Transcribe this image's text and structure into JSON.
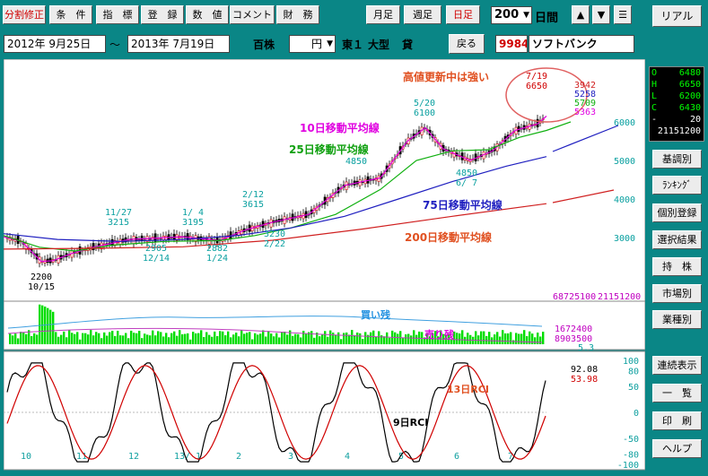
{
  "toolbar": {
    "buttons": [
      "分割修正",
      "条　件",
      "指　標",
      "登　録",
      "数　値",
      "コメント",
      "財　務"
    ],
    "period_buttons": [
      "月足",
      "週足",
      "日足"
    ],
    "count_value": "200",
    "count_unit": "日間",
    "up": "▲",
    "down": "▼",
    "menu": "☰",
    "realtime": "リアル"
  },
  "infobar": {
    "date_from": "2012年 9月25日",
    "tilde": "～",
    "date_to": "2013年 7月19日",
    "unit": "百株",
    "currency": "円",
    "market": "東１",
    "size": "大型",
    "lending": "貸",
    "back": "戻る",
    "code": "9984",
    "name": "ソフトバンク"
  },
  "ohlc": {
    "rows": [
      {
        "k": "O",
        "v": "6480",
        "color": "#00ff00"
      },
      {
        "k": "H",
        "v": "6650",
        "color": "#00ff00"
      },
      {
        "k": "L",
        "v": "6200",
        "color": "#00ff00"
      },
      {
        "k": "C",
        "v": "6430",
        "color": "#00ff00"
      },
      {
        "k": "-",
        "v": "20",
        "color": "#ffffff"
      },
      {
        "k": "",
        "v": "21151200",
        "color": "#ffffff"
      }
    ]
  },
  "sidebar": [
    "基調別",
    "ﾗﾝｷﾝｸﾞ",
    "個別登録",
    "選択結果",
    "持　株",
    "市場別",
    "業種別",
    "連続表示",
    "一　覧",
    "印　刷",
    "ヘルプ"
  ],
  "chart_data": {
    "type": "line",
    "price_axis": {
      "ticks": [
        6000,
        5000,
        4000,
        3000
      ],
      "ylim": [
        1800,
        7000
      ]
    },
    "x_ticks": [
      "10",
      "11",
      "12",
      "13/ 1",
      "2",
      "3",
      "4",
      "5",
      "6",
      "7"
    ],
    "series": [
      {
        "name": "10日移動平均線",
        "color": "#e000e0",
        "points": [
          [
            0,
            3020
          ],
          [
            20,
            2900
          ],
          [
            42,
            2380
          ],
          [
            55,
            2400
          ],
          [
            75,
            2580
          ],
          [
            100,
            2750
          ],
          [
            140,
            2950
          ],
          [
            200,
            3020
          ],
          [
            240,
            2920
          ],
          [
            270,
            3200
          ],
          [
            300,
            3400
          ],
          [
            340,
            3600
          ],
          [
            380,
            4350
          ],
          [
            420,
            4550
          ],
          [
            450,
            5500
          ],
          [
            470,
            5850
          ],
          [
            490,
            5300
          ],
          [
            520,
            5000
          ],
          [
            545,
            5250
          ],
          [
            570,
            5780
          ],
          [
            595,
            5950
          ],
          [
            605,
            6150
          ]
        ]
      },
      {
        "name": "25日移動平均線",
        "color": "#10b010",
        "points": [
          [
            0,
            3050
          ],
          [
            40,
            2750
          ],
          [
            80,
            2650
          ],
          [
            120,
            2800
          ],
          [
            180,
            2900
          ],
          [
            240,
            2920
          ],
          [
            280,
            3050
          ],
          [
            320,
            3250
          ],
          [
            370,
            3600
          ],
          [
            420,
            4250
          ],
          [
            460,
            5000
          ],
          [
            500,
            5250
          ],
          [
            540,
            5280
          ],
          [
            575,
            5600
          ],
          [
            605,
            5780
          ],
          [
            632,
            6000
          ]
        ]
      },
      {
        "name": "75日移動平均線",
        "color": "#2020c0",
        "points": [
          [
            0,
            3100
          ],
          [
            60,
            2950
          ],
          [
            130,
            2900
          ],
          [
            200,
            2950
          ],
          [
            260,
            3050
          ],
          [
            320,
            3250
          ],
          [
            380,
            3550
          ],
          [
            440,
            4000
          ],
          [
            500,
            4450
          ],
          [
            560,
            4850
          ],
          [
            605,
            5100
          ]
        ]
      },
      {
        "name": "200日移動平均線",
        "color": "#d02020",
        "points": [
          [
            0,
            2700
          ],
          [
            100,
            2720
          ],
          [
            200,
            2760
          ],
          [
            300,
            2930
          ],
          [
            400,
            3220
          ],
          [
            500,
            3550
          ],
          [
            605,
            3880
          ]
        ]
      }
    ],
    "annotations": [
      {
        "text": "2200",
        "sub": "10/15"
      },
      {
        "text": "11/27",
        "sub": "3215"
      },
      {
        "text": "2905",
        "sub": "12/14"
      },
      {
        "text": "1/ 4",
        "sub": "3195"
      },
      {
        "text": "2882",
        "sub": "1/24"
      },
      {
        "text": "2/12",
        "sub": "3615"
      },
      {
        "text": "3230",
        "sub": "2/22"
      },
      {
        "text": "4850"
      },
      {
        "text": "5/20",
        "sub": "6100"
      },
      {
        "text": "4850",
        "sub": "6/ 7"
      },
      {
        "text": "7/19",
        "sub": "6650"
      }
    ],
    "ma_values": [
      {
        "v": "3942",
        "color": "#d02020"
      },
      {
        "v": "5258",
        "color": "#2020c0"
      },
      {
        "v": "5709",
        "color": "#10b010"
      },
      {
        "v": "5363",
        "color": "#e000e0"
      }
    ],
    "labels": {
      "title_note": "高値更新中は強い",
      "ma10": "10日移動平均線",
      "ma25": "25日移動平均線",
      "ma75": "75日移動平均線",
      "ma200": "200日移動平均線",
      "vol_total": "68725100",
      "vol_current": "21151200",
      "buy_label": "買い残",
      "sell_label": "売り残",
      "buy_val": "1672400",
      "sell_val": "8903500",
      "ratio": "5.3",
      "rci13": "13日RCI",
      "rci9": "9日RCI",
      "rci_a": "92.08",
      "rci_b": "53.98"
    },
    "rci_ticks": [
      "100",
      "80",
      "50",
      "0",
      "-50",
      "-80",
      "-100"
    ]
  }
}
